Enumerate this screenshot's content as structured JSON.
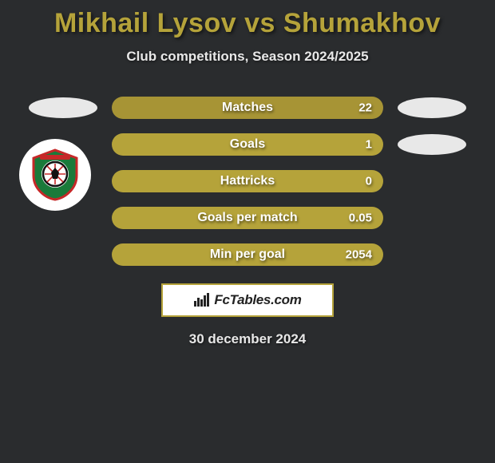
{
  "title": "Mikhail Lysov vs Shumakhov",
  "subtitle": "Club competitions, Season 2024/2025",
  "stats": [
    {
      "label": "Matches",
      "value": "22",
      "color": "#a79435",
      "left_oval": true,
      "right_oval": true
    },
    {
      "label": "Goals",
      "value": "1",
      "color": "#b5a33a",
      "left_oval": false,
      "right_oval": true
    },
    {
      "label": "Hattricks",
      "value": "0",
      "color": "#b5a33a",
      "left_oval": false,
      "right_oval": false
    },
    {
      "label": "Goals per match",
      "value": "0.05",
      "color": "#b5a33a",
      "left_oval": false,
      "right_oval": false
    },
    {
      "label": "Min per goal",
      "value": "2054",
      "color": "#b5a33a",
      "left_oval": false,
      "right_oval": false
    }
  ],
  "brand": "FcTables.com",
  "date": "30 december 2024",
  "colors": {
    "background": "#2a2c2e",
    "accent": "#b5a33a",
    "oval": "#e8e8e8",
    "text": "#e8e8e8"
  }
}
